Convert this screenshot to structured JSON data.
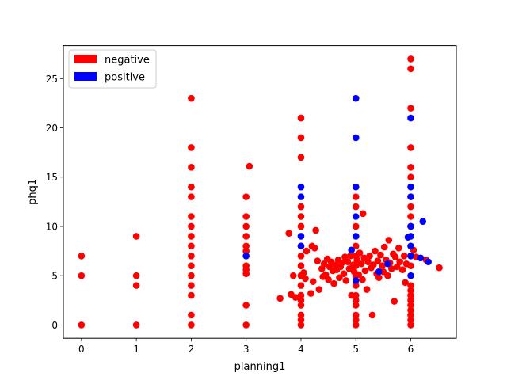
{
  "chart_data": {
    "type": "scatter",
    "title": "",
    "xlabel": "planning1",
    "ylabel": "phq1",
    "xlim": [
      -0.33,
      6.83
    ],
    "ylim": [
      -1.35,
      28.35
    ],
    "xticks": [
      "0",
      "1",
      "2",
      "3",
      "4",
      "5",
      "6"
    ],
    "yticks": [
      "0",
      "5",
      "10",
      "15",
      "20",
      "25"
    ],
    "grid": false,
    "legend_position": "top-left",
    "series": [
      {
        "name": "negative",
        "color": "#ff0000",
        "points": [
          [
            0,
            0
          ],
          [
            0,
            5
          ],
          [
            0,
            7
          ],
          [
            1,
            0
          ],
          [
            1,
            4
          ],
          [
            1,
            5
          ],
          [
            1,
            9
          ],
          [
            2,
            0
          ],
          [
            2,
            1
          ],
          [
            2,
            3
          ],
          [
            2,
            4
          ],
          [
            2,
            5
          ],
          [
            2,
            6
          ],
          [
            2,
            7
          ],
          [
            2,
            8
          ],
          [
            2,
            9
          ],
          [
            2,
            10
          ],
          [
            2,
            11
          ],
          [
            2,
            13
          ],
          [
            2,
            14
          ],
          [
            2,
            16
          ],
          [
            2,
            18
          ],
          [
            2,
            23
          ],
          [
            3,
            0
          ],
          [
            3,
            2
          ],
          [
            3,
            5.2
          ],
          [
            3,
            5.6
          ],
          [
            3,
            6
          ],
          [
            3,
            7.5
          ],
          [
            3,
            8
          ],
          [
            3,
            9
          ],
          [
            3,
            10
          ],
          [
            3,
            11
          ],
          [
            3,
            13
          ],
          [
            3.06,
            16.1
          ],
          [
            3.62,
            2.7
          ],
          [
            3.78,
            9.3
          ],
          [
            3.82,
            3.1
          ],
          [
            3.86,
            5
          ],
          [
            3.9,
            2.8
          ],
          [
            4,
            0
          ],
          [
            4,
            0.5
          ],
          [
            4,
            1
          ],
          [
            4,
            2
          ],
          [
            4,
            2.5
          ],
          [
            4,
            3
          ],
          [
            4,
            4
          ],
          [
            4,
            5
          ],
          [
            4,
            6
          ],
          [
            4,
            7
          ],
          [
            4,
            8
          ],
          [
            4,
            10
          ],
          [
            4,
            11
          ],
          [
            4,
            12
          ],
          [
            4,
            17
          ],
          [
            4,
            19
          ],
          [
            4,
            21
          ],
          [
            4.05,
            5.3
          ],
          [
            4.08,
            4.7
          ],
          [
            4.1,
            7.5
          ],
          [
            4.18,
            3.2
          ],
          [
            4.2,
            8
          ],
          [
            4.22,
            4.4
          ],
          [
            4.25,
            7.8
          ],
          [
            4.27,
            9.6
          ],
          [
            4.3,
            6.5
          ],
          [
            4.33,
            3.6
          ],
          [
            4.38,
            5.7
          ],
          [
            4.4,
            4.9
          ],
          [
            4.42,
            6.2
          ],
          [
            4.45,
            5.1
          ],
          [
            4.48,
            6.7
          ],
          [
            4.5,
            4.6
          ],
          [
            4.52,
            5.9
          ],
          [
            4.55,
            6.4
          ],
          [
            4.58,
            5.5
          ],
          [
            4.6,
            4.2
          ],
          [
            4.63,
            6.1
          ],
          [
            4.65,
            5.6
          ],
          [
            4.68,
            6.6
          ],
          [
            4.7,
            4.8
          ],
          [
            4.72,
            5.9
          ],
          [
            4.75,
            6.3
          ],
          [
            4.78,
            5.2
          ],
          [
            4.8,
            6.9
          ],
          [
            4.82,
            4.5
          ],
          [
            4.85,
            6.4
          ],
          [
            4.88,
            5.7
          ],
          [
            4.9,
            7
          ],
          [
            4.92,
            3
          ],
          [
            4.95,
            6.1
          ],
          [
            4.97,
            5.4
          ],
          [
            5,
            0
          ],
          [
            5,
            0.5
          ],
          [
            5,
            1
          ],
          [
            5,
            2
          ],
          [
            5,
            2.5
          ],
          [
            5,
            3
          ],
          [
            5,
            4
          ],
          [
            5,
            5
          ],
          [
            5,
            6
          ],
          [
            5,
            7
          ],
          [
            5,
            8
          ],
          [
            5,
            10
          ],
          [
            5,
            12
          ],
          [
            5,
            13
          ],
          [
            5.02,
            6.6
          ],
          [
            5.05,
            5.1
          ],
          [
            5.07,
            7.3
          ],
          [
            5.1,
            6.2
          ],
          [
            5.12,
            4.6
          ],
          [
            5.13,
            11.3
          ],
          [
            5.15,
            6.8
          ],
          [
            5.17,
            5.5
          ],
          [
            5.2,
            3.6
          ],
          [
            5.22,
            6.4
          ],
          [
            5.25,
            7
          ],
          [
            5.28,
            5.8
          ],
          [
            5.3,
            1
          ],
          [
            5.32,
            6.1
          ],
          [
            5.35,
            7.5
          ],
          [
            5.38,
            5.2
          ],
          [
            5.4,
            6.5
          ],
          [
            5.42,
            4.8
          ],
          [
            5.45,
            7.1
          ],
          [
            5.48,
            6
          ],
          [
            5.5,
            5.4
          ],
          [
            5.52,
            7.9
          ],
          [
            5.55,
            6.6
          ],
          [
            5.58,
            5
          ],
          [
            5.6,
            8.6
          ],
          [
            5.62,
            6.3
          ],
          [
            5.65,
            5.7
          ],
          [
            5.68,
            7.2
          ],
          [
            5.7,
            2.4
          ],
          [
            5.72,
            6.9
          ],
          [
            5.75,
            5.9
          ],
          [
            5.78,
            7.8
          ],
          [
            5.8,
            6.4
          ],
          [
            5.85,
            5.6
          ],
          [
            5.88,
            7
          ],
          [
            5.9,
            4.3
          ],
          [
            5.92,
            6.2
          ],
          [
            6,
            0
          ],
          [
            6,
            0.5
          ],
          [
            6,
            1
          ],
          [
            6,
            1.5
          ],
          [
            6,
            2
          ],
          [
            6,
            2.5
          ],
          [
            6,
            3
          ],
          [
            6,
            3.5
          ],
          [
            6,
            4
          ],
          [
            6,
            6
          ],
          [
            6,
            7
          ],
          [
            6,
            10
          ],
          [
            6,
            11
          ],
          [
            6,
            12
          ],
          [
            6,
            13
          ],
          [
            6,
            15
          ],
          [
            6,
            16
          ],
          [
            6,
            18
          ],
          [
            6,
            22
          ],
          [
            6,
            26
          ],
          [
            6,
            27
          ],
          [
            6.05,
            7.6
          ],
          [
            6.1,
            6.9
          ],
          [
            6.28,
            6.6
          ],
          [
            6.52,
            5.8
          ]
        ]
      },
      {
        "name": "positive",
        "color": "#0000ff",
        "points": [
          [
            3,
            7
          ],
          [
            4,
            8
          ],
          [
            4,
            9
          ],
          [
            4,
            13
          ],
          [
            4,
            14
          ],
          [
            4.92,
            7.6
          ],
          [
            5,
            4.5
          ],
          [
            5,
            9
          ],
          [
            5,
            11
          ],
          [
            5,
            14
          ],
          [
            5,
            19
          ],
          [
            5,
            23
          ],
          [
            5.42,
            5.4
          ],
          [
            5.58,
            6.2
          ],
          [
            6,
            5
          ],
          [
            6,
            7
          ],
          [
            6,
            8
          ],
          [
            6,
            9
          ],
          [
            6,
            10
          ],
          [
            6,
            13
          ],
          [
            6,
            14
          ],
          [
            6,
            21
          ],
          [
            5.95,
            8.9
          ],
          [
            6.18,
            6.8
          ],
          [
            6.22,
            10.5
          ],
          [
            6.32,
            6.4
          ]
        ]
      }
    ]
  }
}
